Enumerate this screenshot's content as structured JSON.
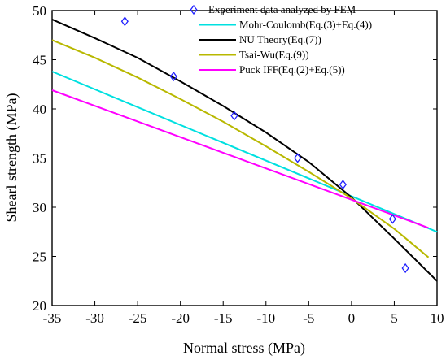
{
  "chart_data": {
    "type": "line",
    "title": "",
    "xlabel": "Normal stress (MPa)",
    "ylabel": "Shearl strength (MPa)",
    "xlim": [
      -35,
      10
    ],
    "ylim": [
      20,
      50
    ],
    "xticks": [
      -35,
      -30,
      -25,
      -20,
      -15,
      -10,
      -5,
      0,
      5,
      10
    ],
    "yticks": [
      20,
      25,
      30,
      35,
      40,
      45,
      50
    ],
    "grid": false,
    "legend_position": "top-right",
    "series": [
      {
        "name": "Experiment data analyzed by FEM",
        "kind": "scatter",
        "marker": "diamond",
        "color": "#2020ff",
        "x": [
          -26.5,
          -20.8,
          -13.7,
          -6.3,
          -1.0,
          4.8,
          6.3
        ],
        "y": [
          48.9,
          43.3,
          39.3,
          35.0,
          32.3,
          28.8,
          23.8
        ]
      },
      {
        "name": "Mohr-Coulomb(Eq.(3)+Eq.(4))",
        "kind": "line",
        "color": "#00e0e0",
        "x": [
          -35,
          10
        ],
        "y": [
          43.8,
          27.5
        ]
      },
      {
        "name": "NU Theory(Eq.(7))",
        "kind": "line",
        "color": "#000000",
        "x": [
          -35,
          -30,
          -25,
          -20,
          -15,
          -10,
          -5,
          0,
          5,
          10
        ],
        "y": [
          49.1,
          47.2,
          45.2,
          42.8,
          40.3,
          37.6,
          34.6,
          31.0,
          26.8,
          22.5
        ]
      },
      {
        "name": "Tsai-Wu(Eq.(9))",
        "kind": "line",
        "color": "#b8b800",
        "x": [
          -35,
          -30,
          -25,
          -20,
          -15,
          -10,
          -5,
          0,
          5,
          9
        ],
        "y": [
          47.0,
          45.2,
          43.2,
          41.0,
          38.7,
          36.2,
          33.6,
          30.9,
          27.8,
          24.9
        ]
      },
      {
        "name": "Puck IFF(Eq.(2)+Eq.(5))",
        "kind": "line",
        "color": "#ff00ff",
        "x": [
          -35,
          9
        ],
        "y": [
          41.9,
          27.9
        ]
      }
    ]
  }
}
